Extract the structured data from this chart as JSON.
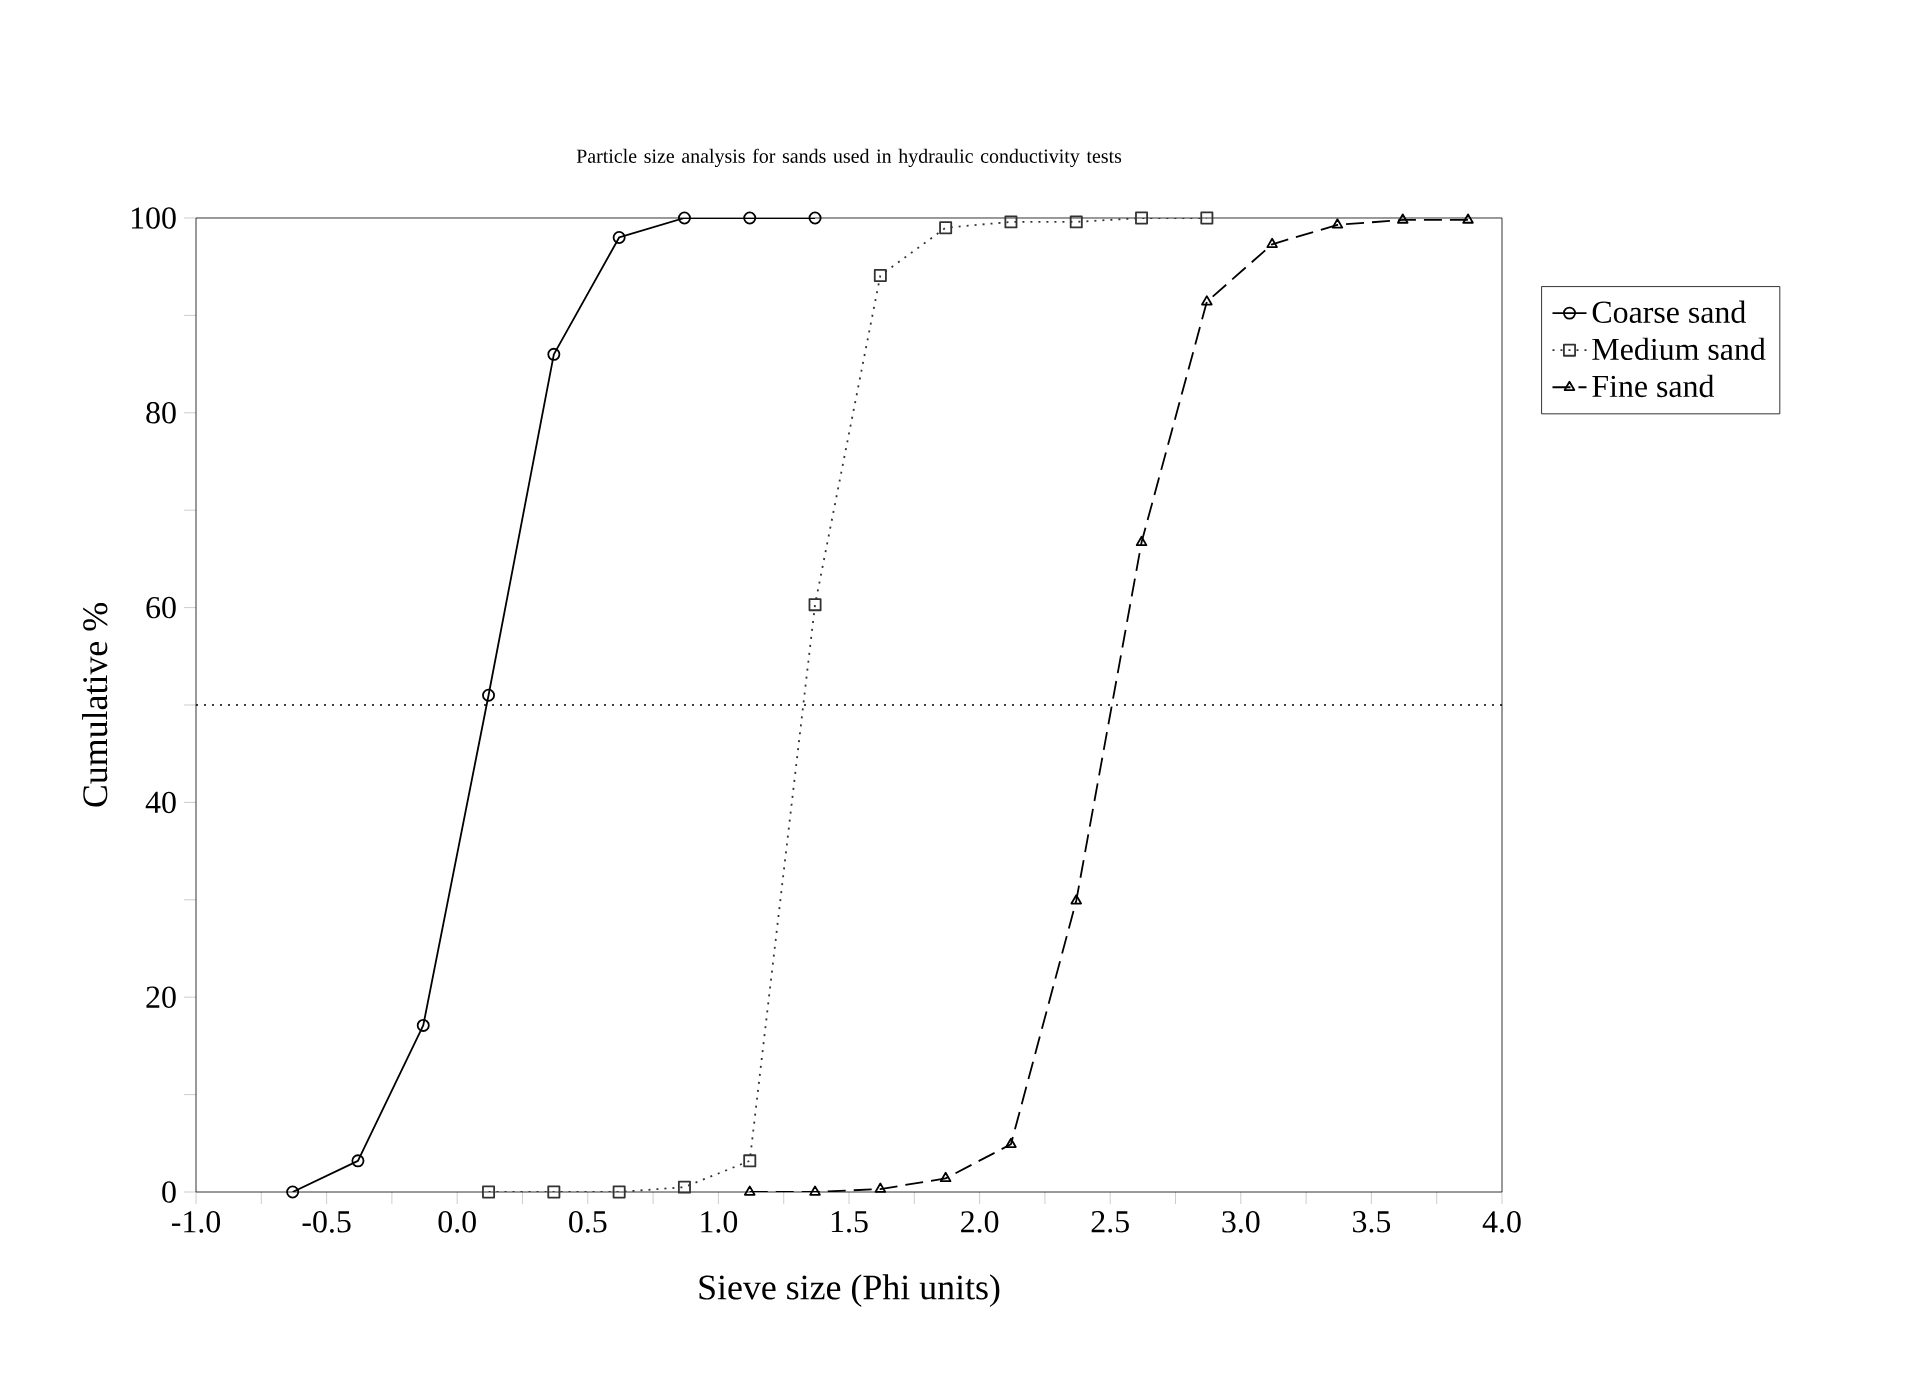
{
  "chart_data": {
    "type": "line",
    "title": "Particle size analysis for sands used in hydraulic conductivity tests",
    "xlabel": "Sieve size (Phi units)",
    "ylabel": "Cumulative %",
    "xlim": [
      -1.0,
      4.0
    ],
    "ylim": [
      0,
      100
    ],
    "xticks": [
      {
        "value": -1.0,
        "label": "-1.0"
      },
      {
        "value": -0.75,
        "label": null
      },
      {
        "value": -0.5,
        "label": "-0.5"
      },
      {
        "value": -0.25,
        "label": null
      },
      {
        "value": 0.0,
        "label": "0.0"
      },
      {
        "value": 0.25,
        "label": null
      },
      {
        "value": 0.5,
        "label": "0.5"
      },
      {
        "value": 0.75,
        "label": null
      },
      {
        "value": 1.0,
        "label": "1.0"
      },
      {
        "value": 1.25,
        "label": null
      },
      {
        "value": 1.5,
        "label": "1.5"
      },
      {
        "value": 1.75,
        "label": null
      },
      {
        "value": 2.0,
        "label": "2.0"
      },
      {
        "value": 2.25,
        "label": null
      },
      {
        "value": 2.5,
        "label": "2.5"
      },
      {
        "value": 2.75,
        "label": null
      },
      {
        "value": 3.0,
        "label": "3.0"
      },
      {
        "value": 3.25,
        "label": null
      },
      {
        "value": 3.5,
        "label": "3.5"
      },
      {
        "value": 3.75,
        "label": null
      },
      {
        "value": 4.0,
        "label": "4.0"
      }
    ],
    "yticks": [
      0,
      {
        "value": 10,
        "label": null
      },
      20,
      {
        "value": 30,
        "label": null
      },
      40,
      {
        "value": 50,
        "label": null
      },
      60,
      {
        "value": 70,
        "label": null
      },
      80,
      {
        "value": 90,
        "label": null
      },
      100
    ],
    "legend": "right",
    "ref_lines": [
      {
        "axis": "y",
        "value": 50,
        "line_style": "dotted",
        "color": "#000000"
      }
    ],
    "series": [
      {
        "name": "Coarse sand",
        "color": "#000000",
        "marker": "circle",
        "line_style": "solid",
        "x": [
          -0.63,
          -0.38,
          -0.13,
          0.12,
          0.37,
          0.62,
          0.87,
          1.12,
          1.37
        ],
        "values": [
          0,
          3.2,
          17.1,
          51,
          86,
          98,
          100,
          100,
          100
        ]
      },
      {
        "name": "Medium sand",
        "color": "#333333",
        "marker": "square",
        "line_style": "dotted",
        "x": [
          0.12,
          0.37,
          0.62,
          0.87,
          1.12,
          1.37,
          1.62,
          1.87,
          2.12,
          2.37,
          2.62,
          2.87
        ],
        "values": [
          0,
          0,
          0,
          0.5,
          3.2,
          60.3,
          94.1,
          99.0,
          99.6,
          99.6,
          100,
          100
        ]
      },
      {
        "name": "Fine sand",
        "color": "#000000",
        "marker": "triangle",
        "line_style": "dashed",
        "x": [
          1.12,
          1.37,
          1.62,
          1.87,
          2.12,
          2.37,
          2.62,
          2.87,
          3.12,
          3.37,
          3.62,
          3.87
        ],
        "values": [
          0,
          0,
          0.3,
          1.4,
          4.9,
          29.9,
          66.7,
          91.4,
          97.3,
          99.3,
          99.8,
          99.8
        ]
      }
    ]
  }
}
